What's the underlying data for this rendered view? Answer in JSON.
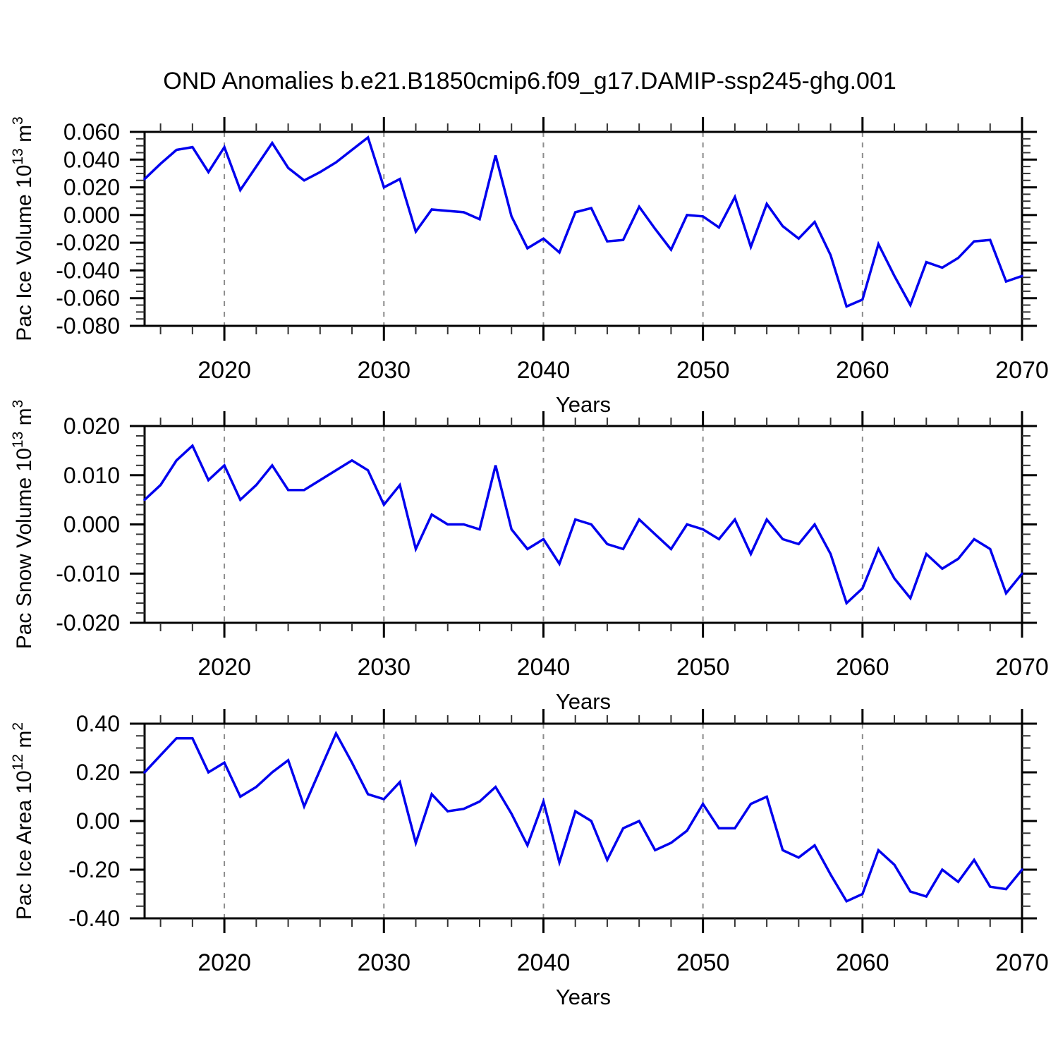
{
  "figure": {
    "title": "OND Anomalies b.e21.B1850cmip6.f09_g17.DAMIP-ssp245-ghg.001",
    "background_color": "#ffffff",
    "line_color": "#0000ee",
    "axis_color": "#000000",
    "grid_color": "#8c8c8c"
  },
  "chart_data": [
    {
      "type": "line",
      "name": "pac-ice-volume",
      "title": "",
      "xlabel": "Years",
      "ylabel": "Pac Ice Volume 10^13 m^3",
      "ylabel_parts": [
        {
          "t": "Pac Ice Volume 10"
        },
        {
          "t": "13",
          "sup": true
        },
        {
          "t": " m"
        },
        {
          "t": "3",
          "sup": true
        }
      ],
      "x_years": {
        "start": 2015,
        "end": 2070,
        "step": 1
      },
      "xlim": [
        2015,
        2070
      ],
      "ylim": [
        -0.08,
        0.06
      ],
      "xticks_major": [
        2020,
        2030,
        2040,
        2050,
        2060,
        2070
      ],
      "xtick_minor_step": 2,
      "x_gridlines_dashed": [
        2020,
        2030,
        2040,
        2050,
        2060
      ],
      "grid": "vertical-dashed",
      "legend": null,
      "yticks": [
        {
          "v": 0.06,
          "label": "0.060"
        },
        {
          "v": 0.04,
          "label": "0.040"
        },
        {
          "v": 0.02,
          "label": "0.020"
        },
        {
          "v": 0.0,
          "label": "0.000"
        },
        {
          "v": -0.02,
          "label": "-0.020"
        },
        {
          "v": -0.04,
          "label": "-0.040"
        },
        {
          "v": -0.06,
          "label": "-0.060"
        },
        {
          "v": -0.08,
          "label": "-0.080"
        }
      ],
      "ytick_minor_step": 0.005,
      "values": [
        0.026,
        0.037,
        0.047,
        0.049,
        0.031,
        0.049,
        0.018,
        0.035,
        0.052,
        0.034,
        0.025,
        0.031,
        0.038,
        0.047,
        0.056,
        0.02,
        0.026,
        -0.012,
        0.004,
        0.003,
        0.002,
        -0.003,
        0.043,
        -0.001,
        -0.024,
        -0.017,
        -0.027,
        0.002,
        0.005,
        -0.019,
        -0.018,
        0.006,
        -0.01,
        -0.025,
        0.0,
        -0.001,
        -0.009,
        0.013,
        -0.023,
        0.008,
        -0.008,
        -0.017,
        -0.005,
        -0.029,
        -0.066,
        -0.061,
        -0.021,
        -0.044,
        -0.065,
        -0.034,
        -0.038,
        -0.031,
        -0.019,
        -0.018,
        -0.048,
        -0.044
      ]
    },
    {
      "type": "line",
      "name": "pac-snow-volume",
      "title": "",
      "xlabel": "Years",
      "ylabel": "Pac Snow Volume 10^13 m^3",
      "ylabel_parts": [
        {
          "t": "Pac Snow Volume 10"
        },
        {
          "t": "13",
          "sup": true
        },
        {
          "t": " m"
        },
        {
          "t": "3",
          "sup": true
        }
      ],
      "x_years": {
        "start": 2015,
        "end": 2070,
        "step": 1
      },
      "xlim": [
        2015,
        2070
      ],
      "ylim": [
        -0.02,
        0.02
      ],
      "xticks_major": [
        2020,
        2030,
        2040,
        2050,
        2060,
        2070
      ],
      "xtick_minor_step": 2,
      "x_gridlines_dashed": [
        2020,
        2030,
        2040,
        2050,
        2060
      ],
      "grid": "vertical-dashed",
      "legend": null,
      "yticks": [
        {
          "v": 0.02,
          "label": "0.020"
        },
        {
          "v": 0.01,
          "label": "0.010"
        },
        {
          "v": 0.0,
          "label": "0.000"
        },
        {
          "v": -0.01,
          "label": "-0.010"
        },
        {
          "v": -0.02,
          "label": "-0.020"
        }
      ],
      "ytick_minor_step": 0.002,
      "values": [
        0.005,
        0.008,
        0.013,
        0.016,
        0.009,
        0.012,
        0.005,
        0.008,
        0.012,
        0.007,
        0.007,
        0.009,
        0.011,
        0.013,
        0.011,
        0.004,
        0.008,
        -0.005,
        0.002,
        0.0,
        0.0,
        -0.001,
        0.012,
        -0.001,
        -0.005,
        -0.003,
        -0.008,
        0.001,
        0.0,
        -0.004,
        -0.005,
        0.001,
        -0.002,
        -0.005,
        0.0,
        -0.001,
        -0.003,
        0.001,
        -0.006,
        0.001,
        -0.003,
        -0.004,
        0.0,
        -0.006,
        -0.016,
        -0.013,
        -0.005,
        -0.011,
        -0.015,
        -0.006,
        -0.009,
        -0.007,
        -0.003,
        -0.005,
        -0.014,
        -0.01
      ]
    },
    {
      "type": "line",
      "name": "pac-ice-area",
      "title": "",
      "xlabel": "Years",
      "ylabel": "Pac Ice Area 10^12 m^2",
      "ylabel_parts": [
        {
          "t": "Pac Ice Area 10"
        },
        {
          "t": "12",
          "sup": true
        },
        {
          "t": " m"
        },
        {
          "t": "2",
          "sup": true
        }
      ],
      "x_years": {
        "start": 2015,
        "end": 2070,
        "step": 1
      },
      "xlim": [
        2015,
        2070
      ],
      "ylim": [
        -0.4,
        0.4
      ],
      "xticks_major": [
        2020,
        2030,
        2040,
        2050,
        2060,
        2070
      ],
      "xtick_minor_step": 2,
      "x_gridlines_dashed": [
        2020,
        2030,
        2040,
        2050,
        2060
      ],
      "grid": "vertical-dashed",
      "legend": null,
      "yticks": [
        {
          "v": 0.4,
          "label": "0.40"
        },
        {
          "v": 0.2,
          "label": "0.20"
        },
        {
          "v": 0.0,
          "label": "0.00"
        },
        {
          "v": -0.2,
          "label": "-0.20"
        },
        {
          "v": -0.4,
          "label": "-0.40"
        }
      ],
      "ytick_minor_step": 0.05,
      "values": [
        0.2,
        0.27,
        0.34,
        0.34,
        0.2,
        0.24,
        0.1,
        0.14,
        0.2,
        0.25,
        0.06,
        0.21,
        0.36,
        0.24,
        0.11,
        0.09,
        0.16,
        -0.09,
        0.11,
        0.04,
        0.05,
        0.08,
        0.14,
        0.03,
        -0.1,
        0.08,
        -0.17,
        0.04,
        0.0,
        -0.16,
        -0.03,
        0.0,
        -0.12,
        -0.09,
        -0.04,
        0.07,
        -0.03,
        -0.03,
        0.07,
        0.1,
        -0.12,
        -0.15,
        -0.1,
        -0.22,
        -0.33,
        -0.3,
        -0.12,
        -0.18,
        -0.29,
        -0.31,
        -0.2,
        -0.25,
        -0.16,
        -0.27,
        -0.28,
        -0.2
      ]
    }
  ]
}
